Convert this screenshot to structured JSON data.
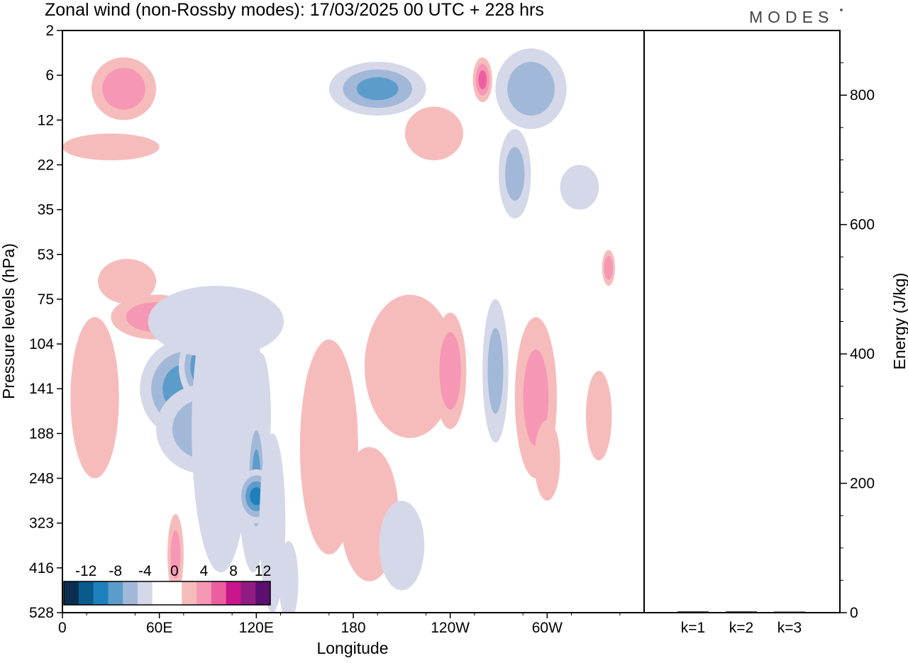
{
  "title": "Zonal wind (non-Rossby modes):  17/03/2025  00 UTC  + 228 hrs",
  "logo": "MODES",
  "chart_data": [
    {
      "type": "heatmap",
      "xlabel": "Longitude",
      "ylabel": "Pressure levels (hPa)",
      "x_ticks": [
        "0",
        "60E",
        "120E",
        "180",
        "120W",
        "60W"
      ],
      "y_ticks": [
        "2",
        "6",
        "12",
        "22",
        "35",
        "53",
        "75",
        "104",
        "141",
        "188",
        "248",
        "323",
        "416",
        "528"
      ],
      "colorbar": {
        "labels": [
          "-12",
          "-8",
          "-4",
          "0",
          "4",
          "8",
          "12"
        ],
        "colors": [
          "#0b2e4e",
          "#0a5a8c",
          "#1d80bc",
          "#5b9ccb",
          "#a2b8d8",
          "#d5d8e8",
          "#ffffff",
          "#ffffff",
          "#f6bcbb",
          "#f597b5",
          "#ec5f9f",
          "#c9168a",
          "#931c83",
          "#5b0f6e"
        ]
      },
      "regions": [
        {
          "lon": 290,
          "lev": 1.3,
          "rx": 22,
          "ry": 0.9,
          "value": -5
        },
        {
          "lon": 195,
          "lev": 1.3,
          "rx": 30,
          "ry": 0.6,
          "value": -6
        },
        {
          "lon": 38,
          "lev": 1.3,
          "rx": 20,
          "ry": 0.7,
          "value": 5
        },
        {
          "lon": 260,
          "lev": 1.1,
          "rx": 6,
          "ry": 0.5,
          "value": 6
        },
        {
          "lon": 30,
          "lev": 2.6,
          "rx": 30,
          "ry": 0.3,
          "value": 3
        },
        {
          "lon": 230,
          "lev": 2.3,
          "rx": 18,
          "ry": 0.6,
          "value": 3
        },
        {
          "lon": 280,
          "lev": 3.2,
          "rx": 10,
          "ry": 1.0,
          "value": -4
        },
        {
          "lon": 58,
          "lev": 6.4,
          "rx": 28,
          "ry": 0.5,
          "value": 5
        },
        {
          "lon": 40,
          "lev": 5.6,
          "rx": 18,
          "ry": 0.5,
          "value": 3
        },
        {
          "lon": 20,
          "lev": 8.2,
          "rx": 15,
          "ry": 1.8,
          "value": 3
        },
        {
          "lon": 76,
          "lev": 8.0,
          "rx": 28,
          "ry": 1.1,
          "value": -7
        },
        {
          "lon": 90,
          "lev": 7.5,
          "rx": 18,
          "ry": 0.9,
          "value": -9
        },
        {
          "lon": 88,
          "lev": 8.9,
          "rx": 30,
          "ry": 1.0,
          "value": -5
        },
        {
          "lon": 123,
          "lev": 8.6,
          "rx": 6,
          "ry": 1.4,
          "value": -4
        },
        {
          "lon": 98,
          "lev": 8.9,
          "rx": 18,
          "ry": 3.2,
          "value": -3
        },
        {
          "lon": 95,
          "lev": 6.5,
          "rx": 42,
          "ry": 0.8,
          "value": -3
        },
        {
          "lon": 118,
          "lev": 9.5,
          "rx": 10,
          "ry": 2.6,
          "value": -3
        },
        {
          "lon": 120,
          "lev": 10.0,
          "rx": 6,
          "ry": 1.5,
          "value": -6
        },
        {
          "lon": 120,
          "lev": 10.4,
          "rx": 12,
          "ry": 0.6,
          "value": -8
        },
        {
          "lon": 130,
          "lev": 11.0,
          "rx": 8,
          "ry": 2.0,
          "value": -3
        },
        {
          "lon": 140,
          "lev": 12.3,
          "rx": 6,
          "ry": 0.9,
          "value": -3
        },
        {
          "lon": 163,
          "lev": 8.5,
          "rx": 14,
          "ry": 1.4,
          "value": 5
        },
        {
          "lon": 163,
          "lev": 8.0,
          "rx": 6,
          "ry": 0.7,
          "value": 9
        },
        {
          "lon": 165,
          "lev": 9.3,
          "rx": 18,
          "ry": 2.4,
          "value": 3
        },
        {
          "lon": 190,
          "lev": 10.8,
          "rx": 18,
          "ry": 1.5,
          "value": 3
        },
        {
          "lon": 215,
          "lev": 7.5,
          "rx": 28,
          "ry": 1.6,
          "value": 3
        },
        {
          "lon": 240,
          "lev": 7.6,
          "rx": 10,
          "ry": 1.3,
          "value": 5
        },
        {
          "lon": 210,
          "lev": 11.5,
          "rx": 14,
          "ry": 1.0,
          "value": -3
        },
        {
          "lon": 268,
          "lev": 7.6,
          "rx": 8,
          "ry": 1.6,
          "value": -4
        },
        {
          "lon": 293,
          "lev": 8.2,
          "rx": 13,
          "ry": 1.8,
          "value": 4
        },
        {
          "lon": 300,
          "lev": 9.6,
          "rx": 8,
          "ry": 0.9,
          "value": 3
        },
        {
          "lon": 332,
          "lev": 8.6,
          "rx": 8,
          "ry": 1.0,
          "value": 3
        },
        {
          "lon": 338,
          "lev": 5.3,
          "rx": 4,
          "ry": 0.4,
          "value": 5
        },
        {
          "lon": 70,
          "lev": 11.7,
          "rx": 5,
          "ry": 0.9,
          "value": 4
        },
        {
          "lon": 320,
          "lev": 3.5,
          "rx": 12,
          "ry": 0.5,
          "value": -3
        }
      ]
    },
    {
      "type": "bar",
      "categories": [
        "k=1",
        "k=2",
        "k=3"
      ],
      "values": [
        2,
        2,
        1
      ],
      "ylabel": "Energy (J/kg)",
      "y_ticks": [
        "0",
        "200",
        "400",
        "600",
        "800"
      ],
      "ylim": [
        0,
        900
      ]
    }
  ]
}
